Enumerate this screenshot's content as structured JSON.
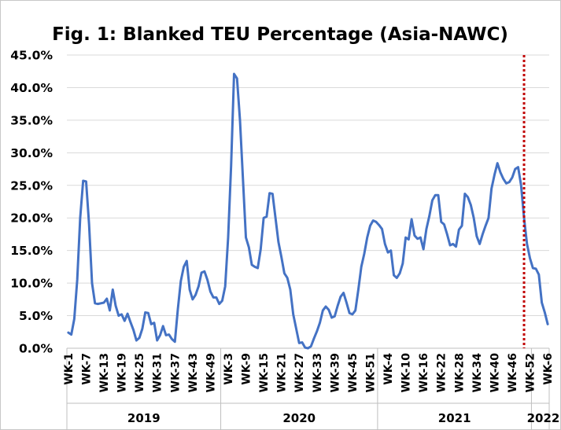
{
  "chart_data": {
    "type": "line",
    "title": "Fig. 1: Blanked TEU Percentage (Asia-NAWC)",
    "xlabel": "",
    "ylabel": "",
    "ylim": [
      0,
      45
    ],
    "yticks": [
      "0.0%",
      "5.0%",
      "10.0%",
      "15.0%",
      "20.0%",
      "25.0%",
      "30.0%",
      "35.0%",
      "40.0%",
      "45.0%"
    ],
    "grid": true,
    "legend": "none",
    "line_color": "#4472C4",
    "marker_color": "#C00000",
    "tick_labels": [
      {
        "label": "WK-1",
        "index": 0
      },
      {
        "label": "WK-7",
        "index": 6
      },
      {
        "label": "WK-13",
        "index": 12
      },
      {
        "label": "WK-19",
        "index": 18
      },
      {
        "label": "WK-25",
        "index": 24
      },
      {
        "label": "WK-31",
        "index": 30
      },
      {
        "label": "WK-37",
        "index": 36
      },
      {
        "label": "WK-43",
        "index": 42
      },
      {
        "label": "WK-49",
        "index": 48
      },
      {
        "label": "WK-3",
        "index": 54
      },
      {
        "label": "WK-9",
        "index": 60
      },
      {
        "label": "WK-15",
        "index": 66
      },
      {
        "label": "WK-21",
        "index": 72
      },
      {
        "label": "WK-27",
        "index": 78
      },
      {
        "label": "WK-33",
        "index": 84
      },
      {
        "label": "WK-39",
        "index": 90
      },
      {
        "label": "WK-45",
        "index": 96
      },
      {
        "label": "WK-51",
        "index": 102
      },
      {
        "label": "WK-4",
        "index": 108
      },
      {
        "label": "WK-10",
        "index": 114
      },
      {
        "label": "WK-16",
        "index": 120
      },
      {
        "label": "WK-22",
        "index": 126
      },
      {
        "label": "WK-28",
        "index": 132
      },
      {
        "label": "WK-34",
        "index": 138
      },
      {
        "label": "WK-40",
        "index": 144
      },
      {
        "label": "WK-46",
        "index": 150
      },
      {
        "label": "WK-52",
        "index": 156
      },
      {
        "label": "WK-6",
        "index": 162
      }
    ],
    "years": [
      {
        "label": "2019",
        "start": 0,
        "end": 52
      },
      {
        "label": "2020",
        "start": 52,
        "end": 105
      },
      {
        "label": "2021",
        "start": 105,
        "end": 157
      },
      {
        "label": "2022",
        "start": 157,
        "end": 165
      }
    ],
    "marker_index": 154,
    "series": [
      {
        "values": [
          2.4,
          2.1,
          4.5,
          10.5,
          20.0,
          25.7,
          25.6,
          19.0,
          10.0,
          6.9,
          6.8,
          6.9,
          7.0,
          7.6,
          5.8,
          9.0,
          6.5,
          5.0,
          5.2,
          4.2,
          5.3,
          4.0,
          2.8,
          1.2,
          1.6,
          3.0,
          5.5,
          5.4,
          3.7,
          3.9,
          1.2,
          2.0,
          3.4,
          2.0,
          2.1,
          1.4,
          1.0,
          6.0,
          10.3,
          12.5,
          13.4,
          9.0,
          7.5,
          8.2,
          9.5,
          11.6,
          11.8,
          10.5,
          8.7,
          7.8,
          7.8,
          6.8,
          7.3,
          9.5,
          17.0,
          28.0,
          42.1,
          41.4,
          35.0,
          26.0,
          17.0,
          15.5,
          12.8,
          12.5,
          12.3,
          15.2,
          20.0,
          20.2,
          23.8,
          23.7,
          20.0,
          16.3,
          14.0,
          11.5,
          10.8,
          9.0,
          5.2,
          3.0,
          0.8,
          0.9,
          0.1,
          0.0,
          0.3,
          1.5,
          2.6,
          3.9,
          5.8,
          6.4,
          5.9,
          4.7,
          4.9,
          6.5,
          7.9,
          8.5,
          7.0,
          5.4,
          5.2,
          5.8,
          9.0,
          12.5,
          14.5,
          17.0,
          18.8,
          19.6,
          19.4,
          18.9,
          18.3,
          16.0,
          14.7,
          15.0,
          11.2,
          10.8,
          11.5,
          13.0,
          17.0,
          16.7,
          19.8,
          17.3,
          16.8,
          17.0,
          15.2,
          18.3,
          20.3,
          22.7,
          23.5,
          23.5,
          19.4,
          19.0,
          17.5,
          15.8,
          16.0,
          15.6,
          18.2,
          18.8,
          23.7,
          23.2,
          22.0,
          20.0,
          17.2,
          16.0,
          17.5,
          18.8,
          20.0,
          24.5,
          26.6,
          28.4,
          27.0,
          26.0,
          25.3,
          25.5,
          26.2,
          27.5,
          27.8,
          25.0,
          20.0,
          16.0,
          13.8,
          12.3,
          12.2,
          11.3,
          7.0,
          5.5,
          3.7
        ]
      }
    ]
  }
}
